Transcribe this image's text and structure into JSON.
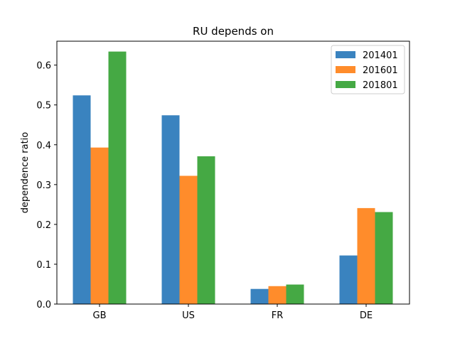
{
  "chart_data": {
    "type": "bar",
    "title": "RU depends on",
    "xlabel": "",
    "ylabel": "dependence ratio",
    "categories": [
      "GB",
      "US",
      "FR",
      "DE"
    ],
    "series": [
      {
        "name": "201401",
        "color": "#3a83bf",
        "values": [
          0.524,
          0.474,
          0.038,
          0.122
        ]
      },
      {
        "name": "201601",
        "color": "#ff8c2b",
        "values": [
          0.393,
          0.322,
          0.045,
          0.241
        ]
      },
      {
        "name": "201801",
        "color": "#45a944",
        "values": [
          0.634,
          0.371,
          0.049,
          0.231
        ]
      }
    ],
    "ylim": [
      0,
      0.66
    ],
    "yticks": [
      "0.0",
      "0.1",
      "0.2",
      "0.3",
      "0.4",
      "0.5",
      "0.6"
    ],
    "grid": false,
    "legend_position": "top-right"
  }
}
